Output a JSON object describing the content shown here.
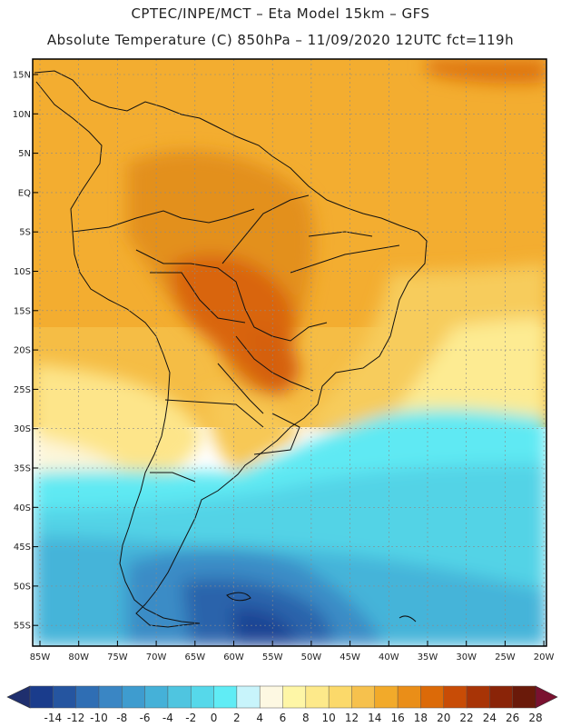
{
  "header": {
    "line1": "CPTEC/INPE/MCT –  Eta Model 15km – GFS",
    "line2": "Absolute Temperature (C) 850hPa – 11/09/2020 12UTC fct=119h"
  },
  "axes": {
    "lat_labels": [
      "15N",
      "10N",
      "5N",
      "EQ",
      "5S",
      "10S",
      "15S",
      "20S",
      "25S",
      "30S",
      "35S",
      "40S",
      "45S",
      "50S",
      "55S"
    ],
    "lon_labels": [
      "85W",
      "80W",
      "75W",
      "70W",
      "65W",
      "60W",
      "55W",
      "50W",
      "45W",
      "40W",
      "35W",
      "30W",
      "25W",
      "20W"
    ]
  },
  "colorbar": {
    "labels": [
      "-14",
      "-12",
      "-10",
      "-8",
      "-6",
      "-4",
      "-2",
      "0",
      "2",
      "4",
      "6",
      "8",
      "10",
      "12",
      "14",
      "16",
      "18",
      "20",
      "22",
      "24",
      "26",
      "28"
    ],
    "colors": [
      "#1a3c8c",
      "#2555a0",
      "#2f6eb4",
      "#3a86c4",
      "#3e9ccf",
      "#45b1d8",
      "#4fc5e0",
      "#56d8ea",
      "#60ecf5",
      "#c8f4fb",
      "#fdf8e2",
      "#fef6a6",
      "#fde98a",
      "#fbd96a",
      "#f6c14d",
      "#f2aa2a",
      "#ea8e18",
      "#dc6a08",
      "#c84c06",
      "#a83406",
      "#8a2408",
      "#6a1a0a"
    ],
    "low_arrow": "#1f2f6e",
    "high_arrow": "#7a1130"
  }
}
